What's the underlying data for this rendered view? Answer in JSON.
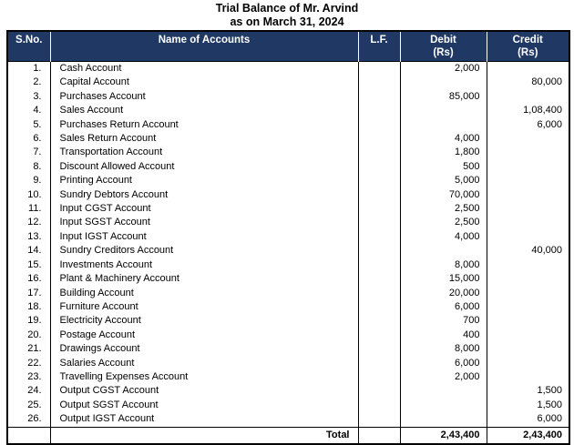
{
  "title": "Trial Balance of Mr. Arvind",
  "subtitle": "as on March 31, 2024",
  "table": {
    "headers": {
      "sno": "S.No.",
      "name": "Name of Accounts",
      "lf": "L.F.",
      "debit": "Debit",
      "credit": "Credit",
      "unit": "(Rs)"
    },
    "rows": [
      {
        "sno": "1.",
        "name": "Cash Account",
        "lf": "",
        "debit": "2,000",
        "credit": ""
      },
      {
        "sno": "2.",
        "name": "Capital Account",
        "lf": "",
        "debit": "",
        "credit": "80,000"
      },
      {
        "sno": "3.",
        "name": "Purchases Account",
        "lf": "",
        "debit": "85,000",
        "credit": ""
      },
      {
        "sno": "4.",
        "name": "Sales Account",
        "lf": "",
        "debit": "",
        "credit": "1,08,400"
      },
      {
        "sno": "5.",
        "name": "Purchases Return Account",
        "lf": "",
        "debit": "",
        "credit": "6,000"
      },
      {
        "sno": "6.",
        "name": "Sales Return Account",
        "lf": "",
        "debit": "4,000",
        "credit": ""
      },
      {
        "sno": "7.",
        "name": "Transportation Account",
        "lf": "",
        "debit": "1,800",
        "credit": ""
      },
      {
        "sno": "8.",
        "name": "Discount Allowed Account",
        "lf": "",
        "debit": "500",
        "credit": ""
      },
      {
        "sno": "9.",
        "name": "Printing Account",
        "lf": "",
        "debit": "5,000",
        "credit": ""
      },
      {
        "sno": "10.",
        "name": "Sundry Debtors Account",
        "lf": "",
        "debit": "70,000",
        "credit": ""
      },
      {
        "sno": "11.",
        "name": "Input CGST Account",
        "lf": "",
        "debit": "2,500",
        "credit": ""
      },
      {
        "sno": "12.",
        "name": "Input SGST Account",
        "lf": "",
        "debit": "2,500",
        "credit": ""
      },
      {
        "sno": "13.",
        "name": "Input IGST Account",
        "lf": "",
        "debit": "4,000",
        "credit": ""
      },
      {
        "sno": "14.",
        "name": "Sundry Creditors Account",
        "lf": "",
        "debit": "",
        "credit": "40,000"
      },
      {
        "sno": "15.",
        "name": "Investments Account",
        "lf": "",
        "debit": "8,000",
        "credit": ""
      },
      {
        "sno": "16.",
        "name": "Plant & Machinery Account",
        "lf": "",
        "debit": "15,000",
        "credit": ""
      },
      {
        "sno": "17.",
        "name": "Building Account",
        "lf": "",
        "debit": "20,000",
        "credit": ""
      },
      {
        "sno": "18.",
        "name": "Furniture Account",
        "lf": "",
        "debit": "6,000",
        "credit": ""
      },
      {
        "sno": "19.",
        "name": "Electricity Account",
        "lf": "",
        "debit": "700",
        "credit": ""
      },
      {
        "sno": "20.",
        "name": "Postage Account",
        "lf": "",
        "debit": "400",
        "credit": ""
      },
      {
        "sno": "21.",
        "name": "Drawings Account",
        "lf": "",
        "debit": "8,000",
        "credit": ""
      },
      {
        "sno": "22.",
        "name": "Salaries Account",
        "lf": "",
        "debit": "6,000",
        "credit": ""
      },
      {
        "sno": "23.",
        "name": "Travelling Expenses Account",
        "lf": "",
        "debit": "2,000",
        "credit": ""
      },
      {
        "sno": "24.",
        "name": "Output CGST Account",
        "lf": "",
        "debit": "",
        "credit": "1,500"
      },
      {
        "sno": "25.",
        "name": "Output SGST Account",
        "lf": "",
        "debit": "",
        "credit": "1,500"
      },
      {
        "sno": "26.",
        "name": "Output IGST Account",
        "lf": "",
        "debit": "",
        "credit": "6,000"
      }
    ],
    "total": {
      "label": "Total",
      "lf": "",
      "debit": "2,43,400",
      "credit": "2,43,400"
    }
  },
  "colors": {
    "header_bg": "#1f3864",
    "header_text": "#ffffff",
    "border": "#000000",
    "text": "#000000"
  }
}
